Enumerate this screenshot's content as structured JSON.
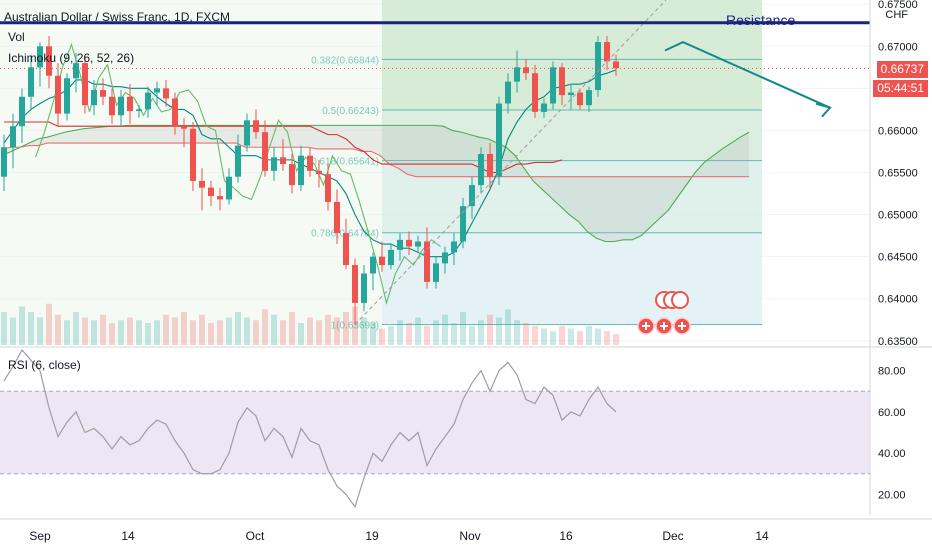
{
  "header": {
    "title": "Australian Dollar / Swiss Franc, 1D, FXCM",
    "volume_label": "Vol",
    "ichimoku_label": "Ichimoku (9, 26, 52, 26)",
    "rsi_label": "RSI (6, close)",
    "currency": "CHF",
    "resistance_label": "Resistance"
  },
  "price_badge": {
    "value": "0.66737",
    "timer": "05:44:51"
  },
  "colors": {
    "bull": "#26a69a",
    "bear": "#ef5350",
    "cloud_green": "#4caf50",
    "cloud_red": "#e57373",
    "resistance": "#1a237e",
    "arrow": "#0f8a8a",
    "fib": "#26a69a",
    "rsi_line": "#9e9e9e",
    "rsi_band": "#e1d5ee"
  },
  "icons": [
    "plus-circle-icon",
    "ideas-bubble-icon"
  ],
  "chart_data": [
    {
      "type": "candlestick",
      "x_axis": {
        "tick_labels": [
          "Sep",
          "14",
          "Oct",
          "19",
          "Nov",
          "16",
          "Dec",
          "14"
        ]
      },
      "y_axis": {
        "ticks": [
          0.635,
          0.64,
          0.645,
          0.65,
          0.655,
          0.66,
          0.665,
          0.67,
          0.675
        ],
        "tick_labels": [
          "0.63500",
          "0.64000",
          "0.64500",
          "0.65000",
          "0.65500",
          "0.66000",
          "0.66500",
          "0.67000",
          "0.67500"
        ],
        "ylim": [
          0.6345,
          0.6755
        ]
      },
      "candles": [
        {
          "o": 0.6545,
          "h": 0.6595,
          "l": 0.6528,
          "c": 0.658
        },
        {
          "o": 0.658,
          "h": 0.662,
          "l": 0.6555,
          "c": 0.6605
        },
        {
          "o": 0.6605,
          "h": 0.665,
          "l": 0.6585,
          "c": 0.664
        },
        {
          "o": 0.664,
          "h": 0.669,
          "l": 0.6625,
          "c": 0.6675
        },
        {
          "o": 0.6675,
          "h": 0.6705,
          "l": 0.6652,
          "c": 0.67
        },
        {
          "o": 0.67,
          "h": 0.6712,
          "l": 0.665,
          "c": 0.6665
        },
        {
          "o": 0.6665,
          "h": 0.668,
          "l": 0.6605,
          "c": 0.662
        },
        {
          "o": 0.662,
          "h": 0.6668,
          "l": 0.6612,
          "c": 0.6662
        },
        {
          "o": 0.6662,
          "h": 0.6692,
          "l": 0.6645,
          "c": 0.668
        },
        {
          "o": 0.668,
          "h": 0.6688,
          "l": 0.662,
          "c": 0.663
        },
        {
          "o": 0.663,
          "h": 0.666,
          "l": 0.6618,
          "c": 0.6648
        },
        {
          "o": 0.6648,
          "h": 0.6662,
          "l": 0.663,
          "c": 0.664
        },
        {
          "o": 0.664,
          "h": 0.665,
          "l": 0.6608,
          "c": 0.6618
        },
        {
          "o": 0.6618,
          "h": 0.6648,
          "l": 0.6605,
          "c": 0.664
        },
        {
          "o": 0.664,
          "h": 0.6655,
          "l": 0.6608,
          "c": 0.6623
        },
        {
          "o": 0.6623,
          "h": 0.663,
          "l": 0.6615,
          "c": 0.6625
        },
        {
          "o": 0.6625,
          "h": 0.6652,
          "l": 0.6615,
          "c": 0.6645
        },
        {
          "o": 0.6645,
          "h": 0.6658,
          "l": 0.663,
          "c": 0.665
        },
        {
          "o": 0.665,
          "h": 0.666,
          "l": 0.6628,
          "c": 0.6638
        },
        {
          "o": 0.6638,
          "h": 0.6645,
          "l": 0.6595,
          "c": 0.6605
        },
        {
          "o": 0.6605,
          "h": 0.6615,
          "l": 0.658,
          "c": 0.6602
        },
        {
          "o": 0.6602,
          "h": 0.661,
          "l": 0.6528,
          "c": 0.654
        },
        {
          "o": 0.654,
          "h": 0.6555,
          "l": 0.6505,
          "c": 0.6532
        },
        {
          "o": 0.6532,
          "h": 0.654,
          "l": 0.651,
          "c": 0.6522
        },
        {
          "o": 0.6522,
          "h": 0.6532,
          "l": 0.6505,
          "c": 0.6518
        },
        {
          "o": 0.6518,
          "h": 0.6555,
          "l": 0.6512,
          "c": 0.6545
        },
        {
          "o": 0.6545,
          "h": 0.6595,
          "l": 0.6538,
          "c": 0.6582
        },
        {
          "o": 0.6582,
          "h": 0.662,
          "l": 0.6575,
          "c": 0.6612
        },
        {
          "o": 0.6612,
          "h": 0.6625,
          "l": 0.659,
          "c": 0.6598
        },
        {
          "o": 0.6598,
          "h": 0.6612,
          "l": 0.6545,
          "c": 0.6552
        },
        {
          "o": 0.6552,
          "h": 0.658,
          "l": 0.654,
          "c": 0.6568
        },
        {
          "o": 0.6568,
          "h": 0.659,
          "l": 0.6552,
          "c": 0.656
        },
        {
          "o": 0.656,
          "h": 0.6572,
          "l": 0.6525,
          "c": 0.6535
        },
        {
          "o": 0.6535,
          "h": 0.6582,
          "l": 0.6528,
          "c": 0.657
        },
        {
          "o": 0.657,
          "h": 0.658,
          "l": 0.6545,
          "c": 0.6552
        },
        {
          "o": 0.6552,
          "h": 0.6565,
          "l": 0.6532,
          "c": 0.6548
        },
        {
          "o": 0.6548,
          "h": 0.656,
          "l": 0.6505,
          "c": 0.6515
        },
        {
          "o": 0.6515,
          "h": 0.653,
          "l": 0.6465,
          "c": 0.6478
        },
        {
          "o": 0.6478,
          "h": 0.6495,
          "l": 0.6435,
          "c": 0.644
        },
        {
          "o": 0.644,
          "h": 0.6448,
          "l": 0.6369,
          "c": 0.6395
        },
        {
          "o": 0.6395,
          "h": 0.644,
          "l": 0.6385,
          "c": 0.643
        },
        {
          "o": 0.643,
          "h": 0.6455,
          "l": 0.641,
          "c": 0.645
        },
        {
          "o": 0.645,
          "h": 0.6468,
          "l": 0.6432,
          "c": 0.644
        },
        {
          "o": 0.644,
          "h": 0.6465,
          "l": 0.6435,
          "c": 0.6458
        },
        {
          "o": 0.6458,
          "h": 0.6478,
          "l": 0.6445,
          "c": 0.647
        },
        {
          "o": 0.647,
          "h": 0.648,
          "l": 0.6452,
          "c": 0.6462
        },
        {
          "o": 0.6462,
          "h": 0.6475,
          "l": 0.6455,
          "c": 0.6468
        },
        {
          "o": 0.6468,
          "h": 0.6485,
          "l": 0.6412,
          "c": 0.642
        },
        {
          "o": 0.642,
          "h": 0.645,
          "l": 0.6412,
          "c": 0.6442
        },
        {
          "o": 0.6442,
          "h": 0.6462,
          "l": 0.643,
          "c": 0.6455
        },
        {
          "o": 0.6455,
          "h": 0.6478,
          "l": 0.644,
          "c": 0.6468
        },
        {
          "o": 0.6468,
          "h": 0.652,
          "l": 0.646,
          "c": 0.651
        },
        {
          "o": 0.651,
          "h": 0.6545,
          "l": 0.6495,
          "c": 0.6535
        },
        {
          "o": 0.6535,
          "h": 0.658,
          "l": 0.6525,
          "c": 0.6572
        },
        {
          "o": 0.6572,
          "h": 0.6585,
          "l": 0.653,
          "c": 0.6545
        },
        {
          "o": 0.6545,
          "h": 0.664,
          "l": 0.6535,
          "c": 0.6632
        },
        {
          "o": 0.6632,
          "h": 0.6668,
          "l": 0.662,
          "c": 0.6658
        },
        {
          "o": 0.6658,
          "h": 0.6695,
          "l": 0.6645,
          "c": 0.6675
        },
        {
          "o": 0.6675,
          "h": 0.6685,
          "l": 0.666,
          "c": 0.6668
        },
        {
          "o": 0.6668,
          "h": 0.6678,
          "l": 0.6615,
          "c": 0.6622
        },
        {
          "o": 0.6622,
          "h": 0.6638,
          "l": 0.6615,
          "c": 0.6632
        },
        {
          "o": 0.6632,
          "h": 0.6682,
          "l": 0.6625,
          "c": 0.6675
        },
        {
          "o": 0.6675,
          "h": 0.668,
          "l": 0.663,
          "c": 0.6642
        },
        {
          "o": 0.6642,
          "h": 0.6655,
          "l": 0.6625,
          "c": 0.6645
        },
        {
          "o": 0.6645,
          "h": 0.665,
          "l": 0.6625,
          "c": 0.663
        },
        {
          "o": 0.663,
          "h": 0.6652,
          "l": 0.6622,
          "c": 0.6648
        },
        {
          "o": 0.6648,
          "h": 0.6712,
          "l": 0.664,
          "c": 0.6705
        },
        {
          "o": 0.6705,
          "h": 0.6712,
          "l": 0.6672,
          "c": 0.6682
        },
        {
          "o": 0.6682,
          "h": 0.669,
          "l": 0.6665,
          "c": 0.6674
        }
      ],
      "volume": [
        12,
        10,
        14,
        12,
        10,
        15,
        11,
        9,
        12,
        10,
        9,
        11,
        8,
        9,
        10,
        9,
        8,
        9,
        11,
        10,
        12,
        9,
        11,
        8,
        9,
        10,
        12,
        10,
        9,
        13,
        11,
        9,
        12,
        8,
        10,
        9,
        11,
        10,
        12,
        14,
        10,
        8,
        6,
        7,
        9,
        8,
        10,
        7,
        9,
        11,
        8,
        12,
        7,
        9,
        11,
        10,
        13,
        9,
        8,
        7,
        6,
        5,
        7,
        6,
        5,
        7,
        6,
        5,
        4
      ],
      "ichimoku": {
        "tenkan": [
          0.6585,
          0.66,
          0.6615,
          0.6625,
          0.6632,
          0.6638,
          0.6642,
          0.6648,
          0.666,
          0.666,
          0.6655,
          0.6655,
          0.6652,
          0.6652,
          0.665,
          0.665,
          0.665,
          0.664,
          0.6632,
          0.6625,
          0.6625,
          0.6618,
          0.6595,
          0.659,
          0.659,
          0.658,
          0.657,
          0.657,
          0.657,
          0.6565,
          0.6565,
          0.6565,
          0.6565,
          0.656,
          0.6555,
          0.655,
          0.6545,
          0.654,
          0.6525,
          0.65,
          0.648,
          0.647,
          0.6465,
          0.6465,
          0.646,
          0.646,
          0.6455,
          0.645,
          0.645,
          0.645,
          0.6455,
          0.647,
          0.649,
          0.651,
          0.653,
          0.6555,
          0.659,
          0.661,
          0.6625,
          0.6635,
          0.664,
          0.665,
          0.6652,
          0.6655,
          0.6655,
          0.6658,
          0.6665,
          0.6668,
          0.6672
        ],
        "kijun": [
          0.661,
          0.661,
          0.661,
          0.661,
          0.661,
          0.661,
          0.6605,
          0.6605,
          0.6605,
          0.6605,
          0.6605,
          0.6605,
          0.6605,
          0.6605,
          0.6605,
          0.6605,
          0.6605,
          0.6605,
          0.6605,
          0.6605,
          0.6605,
          0.6605,
          0.6605,
          0.6605,
          0.6605,
          0.6605,
          0.6605,
          0.6605,
          0.6605,
          0.6605,
          0.6605,
          0.6605,
          0.6605,
          0.6605,
          0.6605,
          0.66,
          0.6595,
          0.6595,
          0.659,
          0.658,
          0.6575,
          0.6565,
          0.656,
          0.656,
          0.656,
          0.656,
          0.656,
          0.656,
          0.656,
          0.656,
          0.656,
          0.656,
          0.656,
          0.6555,
          0.655,
          0.655,
          0.6555,
          0.656,
          0.656,
          0.6562,
          0.6562,
          0.6562,
          0.6565
        ],
        "chikou": [
          0.6568,
          0.6598,
          0.6635,
          0.6675,
          0.6702,
          0.6665,
          0.6622,
          0.6662,
          0.6678,
          0.663,
          0.6645,
          0.6638,
          0.6618,
          0.6638,
          0.6622,
          0.6625,
          0.6645,
          0.6648,
          0.6635,
          0.6605,
          0.66,
          0.654,
          0.6532,
          0.6522,
          0.6518,
          0.6545,
          0.658,
          0.6612,
          0.6598,
          0.6552,
          0.6568,
          0.656,
          0.6535,
          0.657,
          0.6552,
          0.6548,
          0.6515,
          0.6478,
          0.644,
          0.6395,
          0.643,
          0.645,
          0.644,
          0.6458,
          0.647,
          0.6462
        ],
        "span_a": [
          0.657,
          0.6575,
          0.658,
          0.6585,
          0.659,
          0.6592,
          0.6595,
          0.6598,
          0.66,
          0.6602,
          0.6603,
          0.6604,
          0.6605,
          0.6605,
          0.6606,
          0.6606,
          0.6606,
          0.6606,
          0.6606,
          0.6606,
          0.6606,
          0.6606,
          0.6606,
          0.6606,
          0.6606,
          0.6606,
          0.6606,
          0.6606,
          0.6606,
          0.6606,
          0.6606,
          0.6606,
          0.6606,
          0.6606,
          0.6606,
          0.6606,
          0.6606,
          0.6606,
          0.6606,
          0.6606,
          0.6606,
          0.6606,
          0.6606,
          0.6606,
          0.6606,
          0.6606,
          0.6606,
          0.6606,
          0.6606,
          0.6605,
          0.66,
          0.6598,
          0.6595,
          0.6592,
          0.659,
          0.6585,
          0.658,
          0.657,
          0.6555,
          0.654,
          0.653,
          0.652,
          0.651,
          0.65,
          0.6492,
          0.648,
          0.6472,
          0.6468,
          0.6468,
          0.647,
          0.647,
          0.6475,
          0.6485,
          0.6495,
          0.6505,
          0.652,
          0.6535,
          0.655,
          0.6562,
          0.657,
          0.6578,
          0.6585,
          0.6592,
          0.6598
        ],
        "span_b": [
          0.6578,
          0.658,
          0.658,
          0.6582,
          0.6582,
          0.6585,
          0.6585,
          0.6585,
          0.6585,
          0.6585,
          0.6585,
          0.6585,
          0.6585,
          0.6585,
          0.6585,
          0.6585,
          0.6585,
          0.6585,
          0.6585,
          0.6585,
          0.6585,
          0.6585,
          0.6585,
          0.6585,
          0.6585,
          0.6585,
          0.6585,
          0.658,
          0.658,
          0.658,
          0.658,
          0.658,
          0.658,
          0.658,
          0.658,
          0.6578,
          0.6578,
          0.6578,
          0.6578,
          0.6578,
          0.6575,
          0.6575,
          0.657,
          0.656,
          0.6555,
          0.6548,
          0.6545,
          0.6545,
          0.6545,
          0.6545,
          0.6545,
          0.6545,
          0.6545,
          0.6545,
          0.6545,
          0.6545,
          0.6545,
          0.6545,
          0.6545,
          0.6545,
          0.6545,
          0.6545,
          0.6545,
          0.6545,
          0.6545,
          0.6545,
          0.6545,
          0.6545,
          0.6545,
          0.6545,
          0.6545,
          0.6545,
          0.6545,
          0.6545,
          0.6545,
          0.6545,
          0.6545,
          0.6545,
          0.6545,
          0.6545,
          0.6545,
          0.6545,
          0.6545,
          0.6545
        ]
      },
      "fibonacci": {
        "levels": [
          {
            "ratio": "0.382",
            "price": 0.66844,
            "label": "0.382(0.66844)"
          },
          {
            "ratio": "0.5",
            "price": 0.66243,
            "label": "0.5(0.66243)"
          },
          {
            "ratio": "0.618",
            "price": 0.65641,
            "label": "0.618(0.65641)"
          },
          {
            "ratio": "0.786",
            "price": 0.64784,
            "label": "0.786(0.64784)"
          },
          {
            "ratio": "1",
            "price": 0.63693,
            "label": "1(0.63693)"
          }
        ]
      },
      "resistance": 0.6728,
      "trend_line": {
        "from_price": 0.63693,
        "to_price": 0.676
      },
      "projection_arrow": {
        "from_price": 0.6695,
        "mid_price": 0.6705,
        "to_price": 0.6627
      },
      "last_price": 0.66737
    },
    {
      "type": "line",
      "name": "RSI (6, close)",
      "y_axis": {
        "ticks": [
          20,
          40,
          60,
          80
        ],
        "tick_labels": [
          "20.00",
          "40.00",
          "60.00",
          "80.00"
        ],
        "ylim": [
          10,
          90
        ]
      },
      "band": [
        30,
        70
      ],
      "values": [
        75,
        82,
        90,
        85,
        80,
        62,
        48,
        55,
        60,
        50,
        52,
        48,
        42,
        48,
        44,
        46,
        52,
        56,
        54,
        46,
        40,
        32,
        30,
        30,
        32,
        40,
        55,
        62,
        58,
        46,
        52,
        48,
        38,
        52,
        46,
        44,
        32,
        24,
        20,
        14,
        28,
        40,
        36,
        44,
        50,
        46,
        50,
        34,
        42,
        48,
        54,
        66,
        74,
        80,
        70,
        80,
        84,
        78,
        66,
        64,
        72,
        68,
        56,
        60,
        58,
        66,
        72,
        64,
        60
      ],
      "labels": {
        "values": [
          "80.00",
          "60.00",
          "40.00",
          "20.00"
        ]
      }
    }
  ]
}
